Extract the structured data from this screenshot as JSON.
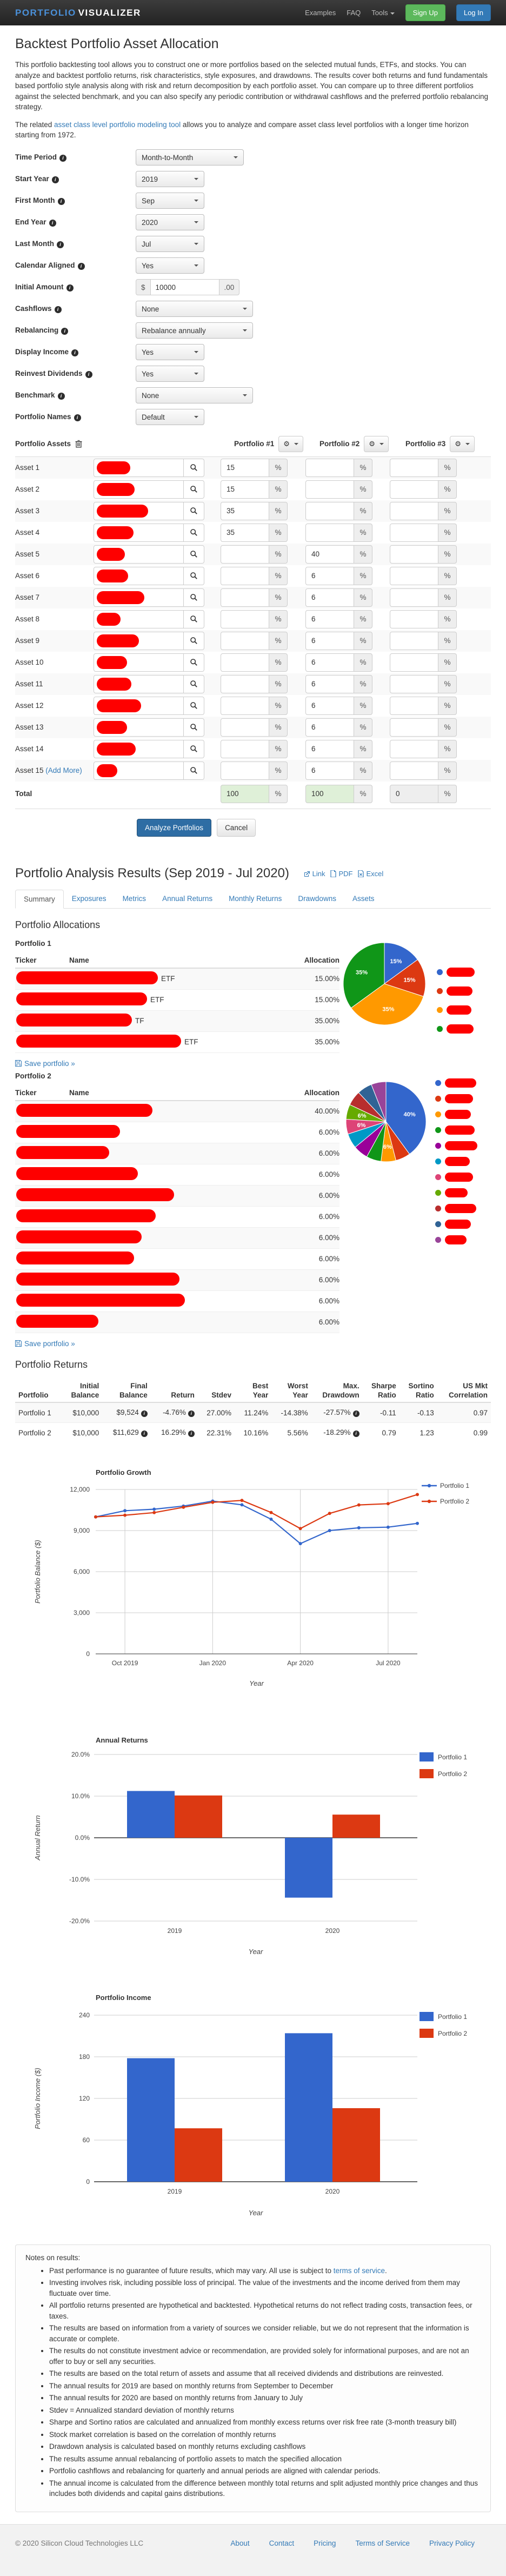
{
  "navbar": {
    "brand": {
      "first": "PORTFOLIO",
      "second": "VISUALIZER"
    },
    "links": [
      "Examples",
      "FAQ",
      "Tools"
    ],
    "signup_label": "Sign Up",
    "login_label": "Log In"
  },
  "page": {
    "title": "Backtest Portfolio Asset Allocation",
    "intro1": "This portfolio backtesting tool allows you to construct one or more portfolios based on the selected mutual funds, ETFs, and stocks. You can analyze and backtest portfolio returns, risk characteristics, style exposures, and drawdowns. The results cover both returns and fund fundamentals based portfolio style analysis along with risk and return decomposition by each portfolio asset. You can compare up to three different portfolios against the selected benchmark, and you can also specify any periodic contribution or withdrawal cashflows and the preferred portfolio rebalancing strategy.",
    "intro2_pre": "The related ",
    "intro2_link": "asset class level portfolio modeling tool",
    "intro2_post": " allows you to analyze and compare asset class level portfolios with a longer time horizon starting from 1972."
  },
  "form": {
    "fields": [
      {
        "label": "Time Period",
        "value": "Month-to-Month",
        "kind": "select-w200"
      },
      {
        "label": "Start Year",
        "value": "2019",
        "kind": "select"
      },
      {
        "label": "First Month",
        "value": "Sep",
        "kind": "select"
      },
      {
        "label": "End Year",
        "value": "2020",
        "kind": "select"
      },
      {
        "label": "Last Month",
        "value": "Jul",
        "kind": "select"
      },
      {
        "label": "Calendar Aligned",
        "value": "Yes",
        "kind": "select"
      },
      {
        "label": "Initial Amount",
        "prefix": "$",
        "value": "10000",
        "suffix": ".00",
        "kind": "money"
      },
      {
        "label": "Cashflows",
        "value": "None",
        "kind": "select-wide"
      },
      {
        "label": "Rebalancing",
        "value": "Rebalance annually",
        "kind": "select-wide"
      },
      {
        "label": "Display Income",
        "value": "Yes",
        "kind": "select"
      },
      {
        "label": "Reinvest Dividends",
        "value": "Yes",
        "kind": "select"
      },
      {
        "label": "Benchmark",
        "value": "None",
        "kind": "select-wide"
      },
      {
        "label": "Portfolio Names",
        "value": "Default",
        "kind": "select"
      }
    ]
  },
  "assets": {
    "section_label": "Portfolio Assets",
    "portfolio_headers": [
      "Portfolio #1",
      "Portfolio #2",
      "Portfolio #3"
    ],
    "add_more_label": "(Add More)",
    "percent_sign": "%",
    "rows": [
      {
        "label": "Asset 1",
        "p1": "15",
        "p2": "",
        "p3": ""
      },
      {
        "label": "Asset 2",
        "p1": "15",
        "p2": "",
        "p3": ""
      },
      {
        "label": "Asset 3",
        "p1": "35",
        "p2": "",
        "p3": ""
      },
      {
        "label": "Asset 4",
        "p1": "35",
        "p2": "",
        "p3": ""
      },
      {
        "label": "Asset 5",
        "p1": "",
        "p2": "40",
        "p3": ""
      },
      {
        "label": "Asset 6",
        "p1": "",
        "p2": "6",
        "p3": ""
      },
      {
        "label": "Asset 7",
        "p1": "",
        "p2": "6",
        "p3": ""
      },
      {
        "label": "Asset 8",
        "p1": "",
        "p2": "6",
        "p3": ""
      },
      {
        "label": "Asset 9",
        "p1": "",
        "p2": "6",
        "p3": ""
      },
      {
        "label": "Asset 10",
        "p1": "",
        "p2": "6",
        "p3": ""
      },
      {
        "label": "Asset 11",
        "p1": "",
        "p2": "6",
        "p3": ""
      },
      {
        "label": "Asset 12",
        "p1": "",
        "p2": "6",
        "p3": ""
      },
      {
        "label": "Asset 13",
        "p1": "",
        "p2": "6",
        "p3": ""
      },
      {
        "label": "Asset 14",
        "p1": "",
        "p2": "6",
        "p3": ""
      },
      {
        "label": "Asset 15",
        "p1": "",
        "p2": "6",
        "p3": ""
      }
    ],
    "total_label": "Total",
    "totals": [
      "100",
      "100",
      "0"
    ]
  },
  "actions": {
    "analyze_label": "Analyze Portfolios",
    "cancel_label": "Cancel"
  },
  "results": {
    "title": "Portfolio Analysis Results",
    "period": "(Sep 2019 - Jul 2020)",
    "export_links": [
      "Link",
      "PDF",
      "Excel"
    ],
    "tabs": [
      "Summary",
      "Exposures",
      "Metrics",
      "Annual Returns",
      "Monthly Returns",
      "Drawdowns",
      "Assets"
    ],
    "active_tab": "Summary"
  },
  "allocations": {
    "heading": "Portfolio Allocations",
    "save_label": "Save portfolio »",
    "portfolios": [
      {
        "name": "Portfolio 1",
        "headers": [
          "Ticker",
          "Name",
          "Allocation"
        ],
        "rows": [
          {
            "name_visible": "ETF",
            "allocation": "15.00%"
          },
          {
            "name_visible": "ETF",
            "allocation": "15.00%"
          },
          {
            "name_visible": "TF",
            "allocation": "35.00%"
          },
          {
            "name_visible": "ETF",
            "allocation": "35.00%"
          }
        ]
      },
      {
        "name": "Portfolio 2",
        "headers": [
          "Ticker",
          "Name",
          "Allocation"
        ],
        "rows": [
          {
            "name_visible": "",
            "allocation": "40.00%"
          },
          {
            "name_visible": "",
            "allocation": "6.00%"
          },
          {
            "name_visible": "",
            "allocation": "6.00%"
          },
          {
            "name_visible": "",
            "allocation": "6.00%"
          },
          {
            "name_visible": "",
            "allocation": "6.00%"
          },
          {
            "name_visible": "",
            "allocation": "6.00%"
          },
          {
            "name_visible": "",
            "allocation": "6.00%"
          },
          {
            "name_visible": "",
            "allocation": "6.00%"
          },
          {
            "name_visible": "",
            "allocation": "6.00%"
          },
          {
            "name_visible": "",
            "allocation": "6.00%"
          },
          {
            "name_visible": "",
            "allocation": "6.00%"
          }
        ]
      }
    ]
  },
  "returns": {
    "heading": "Portfolio Returns",
    "headers": [
      [
        "Portfolio"
      ],
      [
        "Initial",
        "Balance"
      ],
      [
        "Final",
        "Balance"
      ],
      [
        "Return"
      ],
      [
        "Stdev"
      ],
      [
        "Best",
        "Year"
      ],
      [
        "Worst",
        "Year"
      ],
      [
        "Max.",
        "Drawdown"
      ],
      [
        "Sharpe",
        "Ratio"
      ],
      [
        "Sortino",
        "Ratio"
      ],
      [
        "US Mkt",
        "Correlation"
      ]
    ],
    "info_columns": [
      2,
      3,
      7
    ],
    "rows": [
      [
        "Portfolio 1",
        "$10,000",
        "$9,524",
        "-4.76%",
        "27.00%",
        "11.24%",
        "-14.38%",
        "-27.57%",
        "-0.11",
        "-0.13",
        "0.97"
      ],
      [
        "Portfolio 2",
        "$10,000",
        "$11,629",
        "16.29%",
        "22.31%",
        "10.16%",
        "5.56%",
        "-18.29%",
        "0.79",
        "1.23",
        "0.99"
      ]
    ]
  },
  "chart_data": [
    {
      "type": "pie",
      "title": "Portfolio 1 Allocation",
      "values": [
        15,
        15,
        35,
        35
      ],
      "slice_labels": [
        "15%",
        "15%",
        "35%",
        "35%"
      ],
      "colors": [
        "#3366cc",
        "#dc3912",
        "#ff9900",
        "#109618"
      ],
      "legend": "redacted"
    },
    {
      "type": "pie",
      "title": "Portfolio 2 Allocation",
      "values": [
        40,
        6,
        6,
        6,
        6,
        6,
        6,
        6,
        6,
        6,
        6
      ],
      "slice_labels": [
        "40%",
        "",
        "6%",
        "",
        "",
        "",
        "6%",
        "6%",
        "",
        "",
        ""
      ],
      "colors": [
        "#3366cc",
        "#dc3912",
        "#ff9900",
        "#109618",
        "#990099",
        "#0099c6",
        "#dd4477",
        "#66aa00",
        "#b82e2e",
        "#316395",
        "#994499"
      ],
      "legend": "redacted"
    },
    {
      "type": "line",
      "title": "Portfolio Growth",
      "xlabel": "Year",
      "ylabel": "Portfolio Balance ($)",
      "ylim": [
        0,
        12000
      ],
      "y_tick_values": [
        0,
        3000,
        6000,
        9000,
        12000
      ],
      "y_tick_labels": [
        "0",
        "3,000",
        "6,000",
        "9,000",
        "12,000"
      ],
      "x": [
        "Sep 2019 start",
        "Sep 2019",
        "Oct 2019",
        "Nov 2019",
        "Dec 2019",
        "Jan 2020",
        "Feb 2020",
        "Mar 2020",
        "Apr 2020",
        "May 2020",
        "Jun 2020",
        "Jul 2020"
      ],
      "x_tick_indices": [
        1,
        4,
        7,
        10
      ],
      "x_tick_labels": [
        "Oct 2019",
        "Jan 2020",
        "Apr 2020",
        "Jul 2020"
      ],
      "series": [
        {
          "name": "Portfolio 1",
          "color": "#3366cc",
          "values": [
            10000,
            10450,
            10560,
            10790,
            11150,
            10880,
            9830,
            8050,
            9000,
            9200,
            9250,
            9524
          ]
        },
        {
          "name": "Portfolio 2",
          "color": "#dc3912",
          "values": [
            10000,
            10120,
            10310,
            10700,
            11060,
            11200,
            10320,
            9150,
            10250,
            10870,
            10960,
            11629
          ]
        }
      ]
    },
    {
      "type": "bar",
      "title": "Annual Returns",
      "xlabel": "Year",
      "ylabel": "Annual Return",
      "categories": [
        "2019",
        "2020"
      ],
      "ylim": [
        -20,
        20
      ],
      "y_tick_values": [
        -20,
        -10,
        0,
        10,
        20
      ],
      "y_tick_labels": [
        "-20.0%",
        "-10.0%",
        "0.0%",
        "10.0%",
        "20.0%"
      ],
      "series": [
        {
          "name": "Portfolio 1",
          "color": "#3366cc",
          "values": [
            11.24,
            -14.38
          ]
        },
        {
          "name": "Portfolio 2",
          "color": "#dc3912",
          "values": [
            10.16,
            5.56
          ]
        }
      ]
    },
    {
      "type": "bar",
      "title": "Portfolio Income",
      "xlabel": "Year",
      "ylabel": "Portfolio Income ($)",
      "categories": [
        "2019",
        "2020"
      ],
      "ylim": [
        0,
        240
      ],
      "y_tick_values": [
        0,
        60,
        120,
        180,
        240
      ],
      "y_tick_labels": [
        "0",
        "60",
        "120",
        "180",
        "240"
      ],
      "series": [
        {
          "name": "Portfolio 1",
          "color": "#3366cc",
          "values": [
            178,
            214
          ]
        },
        {
          "name": "Portfolio 2",
          "color": "#dc3912",
          "values": [
            77,
            106
          ]
        }
      ]
    }
  ],
  "notes": {
    "intro": "Notes on results:",
    "first": {
      "pre": "Past performance is no guarantee of future results, which may vary. All use is subject to ",
      "link": "terms of service",
      "post": "."
    },
    "items": [
      "Investing involves risk, including possible loss of principal. The value of the investments and the income derived from them may fluctuate over time.",
      "All portfolio returns presented are hypothetical and backtested. Hypothetical returns do not reflect trading costs, transaction fees, or taxes.",
      "The results are based on information from a variety of sources we consider reliable, but we do not represent that the information is accurate or complete.",
      "The results do not constitute investment advice or recommendation, are provided solely for informational purposes, and are not an offer to buy or sell any securities.",
      "The results are based on the total return of assets and assume that all received dividends and distributions are reinvested.",
      "The annual results for 2019 are based on monthly returns from September to December",
      "The annual results for 2020 are based on monthly returns from January to July",
      "Stdev = Annualized standard deviation of monthly returns",
      "Sharpe and Sortino ratios are calculated and annualized from monthly excess returns over risk free rate (3-month treasury bill)",
      "Stock market correlation is based on the correlation of monthly returns",
      "Drawdown analysis is calculated based on monthly returns excluding cashflows",
      "The results assume annual rebalancing of portfolio assets to match the specified allocation",
      "Portfolio cashflows and rebalancing for quarterly and annual periods are aligned with calendar periods.",
      "The annual income is calculated from the difference between monthly total returns and split adjusted monthly price changes and thus includes both dividends and capital gains distributions."
    ]
  },
  "footer": {
    "copyright": "© 2020 Silicon Cloud Technologies LLC",
    "links": [
      "About",
      "Contact",
      "Pricing",
      "Terms of Service",
      "Privacy Policy"
    ]
  }
}
